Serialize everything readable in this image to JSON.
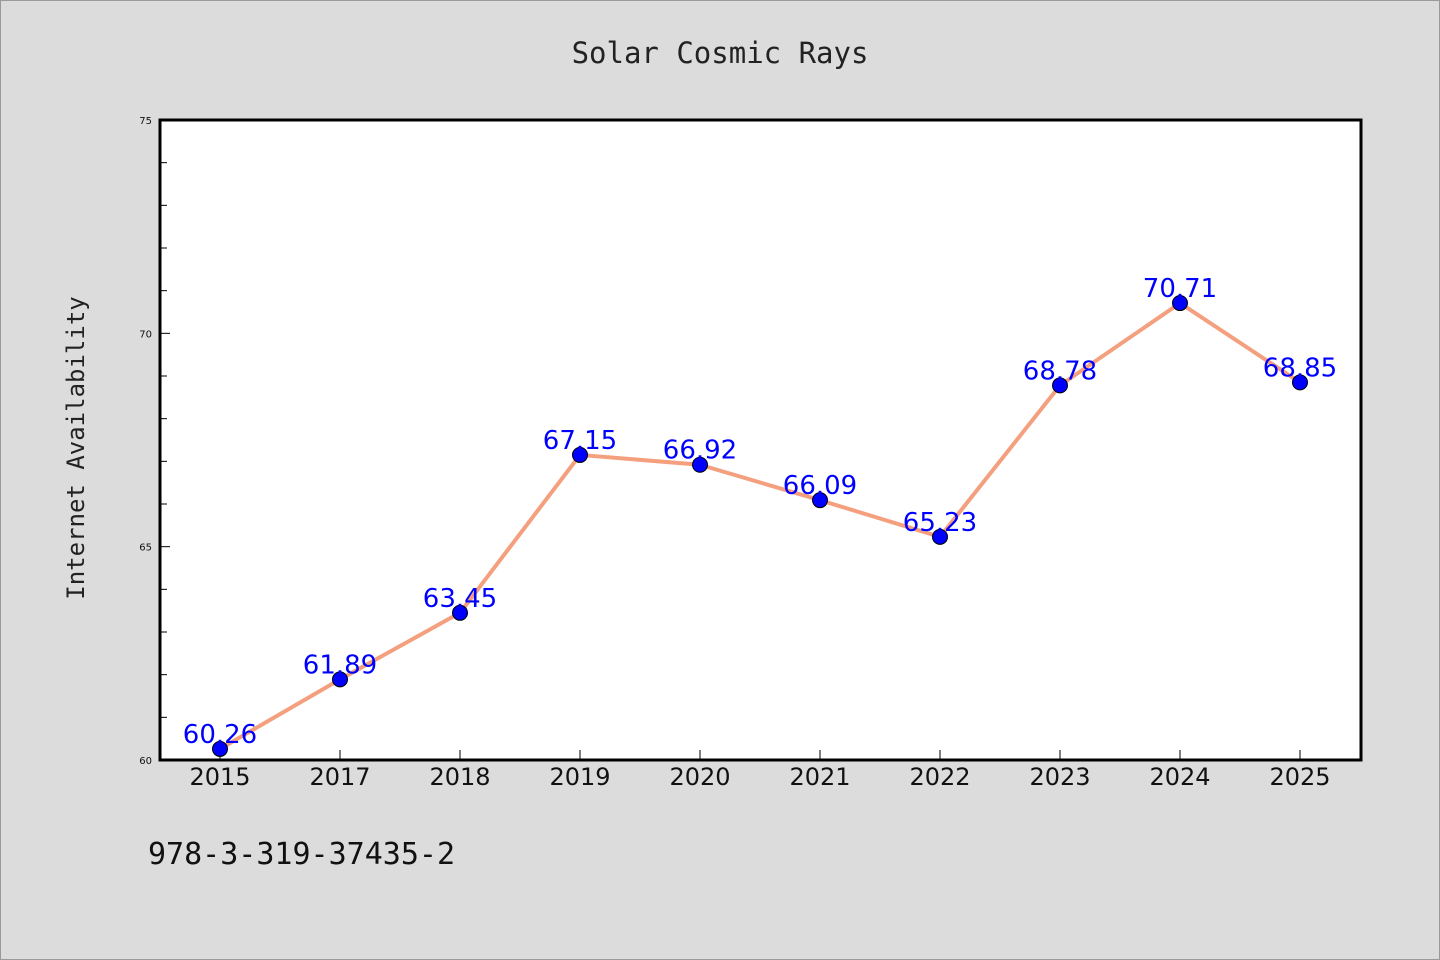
{
  "chart_data": {
    "type": "line",
    "title": "Solar Cosmic Rays",
    "xlabel": "",
    "ylabel": "Internet Availability",
    "categories": [
      "2015",
      "2017",
      "2018",
      "2019",
      "2020",
      "2021",
      "2022",
      "2023",
      "2024",
      "2025"
    ],
    "series": [
      {
        "values": [
          60.26,
          61.89,
          63.45,
          67.15,
          66.92,
          66.09,
          65.23,
          68.78,
          70.71,
          68.85
        ],
        "line_color": "#f4a07f",
        "marker_color": "#0000ff",
        "label_color": "#0000ff"
      }
    ],
    "ylim": [
      60,
      75
    ],
    "yticks": [
      "60",
      "65",
      "70",
      "75"
    ],
    "grid": false,
    "legend": "none"
  },
  "footer_text": "978-3-319-37435-2"
}
